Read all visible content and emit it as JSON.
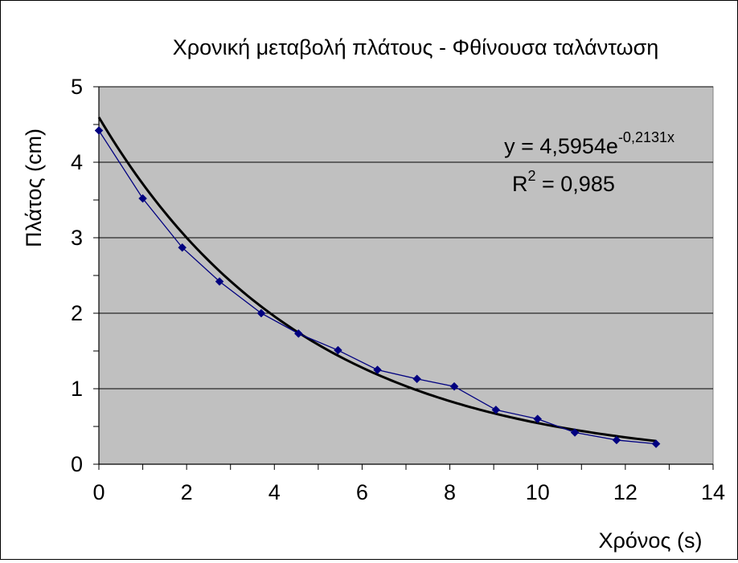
{
  "chart_data": {
    "type": "scatter",
    "title": "Χρονική μεταβολή πλάτους - Φθίνουσα ταλάντωση",
    "xlabel": "Χρόνος (s)",
    "ylabel": "Πλάτος (cm)",
    "xlim": [
      0,
      14
    ],
    "ylim": [
      0,
      5
    ],
    "xticks": [
      0,
      2,
      4,
      6,
      8,
      10,
      12,
      14
    ],
    "yticks": [
      0,
      1,
      2,
      3,
      4,
      5
    ],
    "xtick_labels": [
      "0",
      "2",
      "4",
      "6",
      "8",
      "10",
      "12",
      "14"
    ],
    "ytick_labels": [
      "0",
      "1",
      "2",
      "3",
      "4",
      "5"
    ],
    "grid": "horizontal",
    "plot_background": "#c0c0c0",
    "series": [
      {
        "color": "#000080",
        "marker": "diamond",
        "x": [
          0.0,
          1.0,
          1.9,
          2.75,
          3.7,
          4.55,
          5.45,
          6.35,
          7.25,
          8.1,
          9.05,
          10.0,
          10.85,
          11.8,
          12.7
        ],
        "y": [
          4.42,
          3.52,
          2.87,
          2.42,
          2.0,
          1.73,
          1.51,
          1.25,
          1.13,
          1.03,
          0.72,
          0.6,
          0.42,
          0.32,
          0.27
        ]
      }
    ],
    "trendline": {
      "type": "exponential",
      "color": "#000000",
      "a": 4.5954,
      "b": -0.2131,
      "x_range": [
        0,
        12.7
      ],
      "equation_prefix": "y = 4,5954e",
      "equation_exponent": "-0,2131x",
      "r2_prefix": "R",
      "r2_superscript": "2",
      "r2_suffix": " = 0,985"
    }
  }
}
